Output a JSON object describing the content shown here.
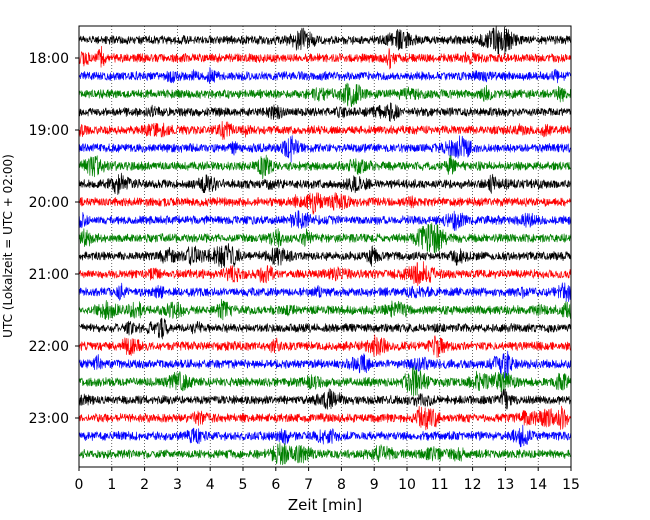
{
  "chart_data": {
    "type": "line",
    "title": "",
    "xlabel": "Zeit  [min]",
    "ylabel": "UTC (Lokalzeit = UTC + 02:00)",
    "xlim": [
      0,
      15
    ],
    "xticks": [
      "0",
      "1",
      "2",
      "3",
      "4",
      "5",
      "6",
      "7",
      "8",
      "9",
      "10",
      "11",
      "12",
      "13",
      "14",
      "15"
    ],
    "yticks": [
      "18:00",
      "19:00",
      "20:00",
      "21:00",
      "22:00",
      "23:00"
    ],
    "trace_start": "17:45",
    "trace_interval_minutes": 15,
    "trace_count": 24,
    "colors": [
      "#000000",
      "#ff0000",
      "#0000ff",
      "#008000"
    ],
    "grid": {
      "vertical_dotted": true,
      "horizontal": false
    }
  }
}
